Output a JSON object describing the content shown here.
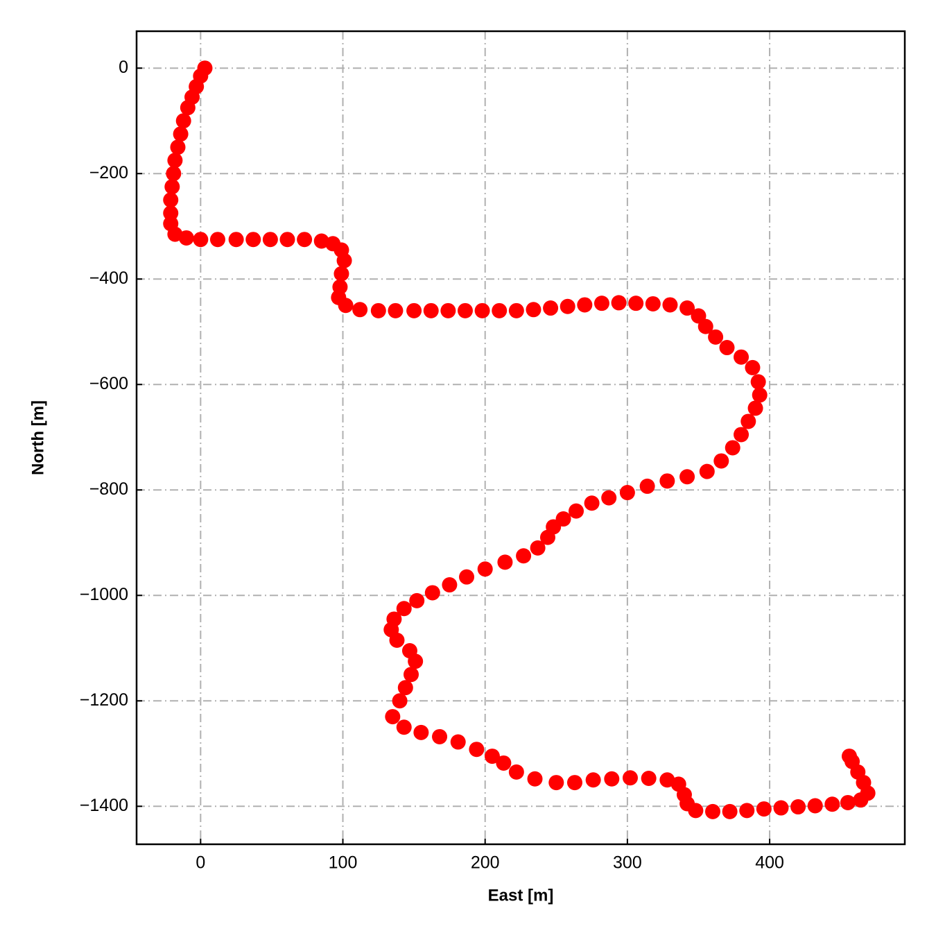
{
  "chart_data": {
    "type": "scatter",
    "xlabel": "East [m]",
    "ylabel": "North [m]",
    "color": "#ff0000",
    "grid": true,
    "xlim": [
      -45,
      495
    ],
    "ylim": [
      -1472,
      70
    ],
    "xticks": [
      0,
      100,
      200,
      300,
      400
    ],
    "yticks": [
      0,
      {
        "value": -200,
        "label": "−200"
      },
      {
        "value": -400,
        "label": "−400"
      },
      {
        "value": -600,
        "label": "−600"
      },
      {
        "value": -800,
        "label": "−800"
      },
      {
        "value": -1000,
        "label": "−1000"
      },
      {
        "value": -1200,
        "label": "−1200"
      },
      {
        "value": -1400,
        "label": "−1400"
      }
    ],
    "x": [
      3,
      0,
      -3,
      -6,
      -9,
      -12,
      -14,
      -16,
      -18,
      -19,
      -20,
      -21,
      -21,
      -21,
      -18,
      -10,
      0,
      12,
      25,
      37,
      49,
      61,
      73,
      85,
      93,
      99,
      101,
      99,
      98,
      97,
      102,
      112,
      125,
      137,
      150,
      162,
      174,
      186,
      198,
      210,
      222,
      234,
      246,
      258,
      270,
      282,
      294,
      306,
      318,
      330,
      342,
      350,
      355,
      362,
      370,
      380,
      388,
      392,
      393,
      390,
      385,
      380,
      374,
      366,
      356,
      342,
      328,
      314,
      300,
      287,
      275,
      264,
      255,
      248,
      244,
      237,
      227,
      214,
      200,
      187,
      175,
      163,
      152,
      143,
      136,
      134,
      138,
      147,
      151,
      148,
      144,
      140,
      135,
      143,
      155,
      168,
      181,
      194,
      205,
      213,
      222,
      235,
      250,
      263,
      276,
      289,
      302,
      315,
      328,
      336,
      340,
      342,
      348,
      360,
      372,
      384,
      396,
      408,
      420,
      432,
      444,
      455,
      464,
      469,
      466,
      462,
      458,
      456
    ],
    "values": [
      0,
      -15,
      -35,
      -55,
      -75,
      -100,
      -125,
      -150,
      -175,
      -200,
      -225,
      -250,
      -275,
      -295,
      -315,
      -322,
      -325,
      -325,
      -325,
      -325,
      -325,
      -325,
      -325,
      -328,
      -333,
      -345,
      -365,
      -390,
      -415,
      -435,
      -450,
      -458,
      -460,
      -460,
      -460,
      -460,
      -460,
      -460,
      -460,
      -460,
      -460,
      -458,
      -455,
      -452,
      -449,
      -446,
      -445,
      -446,
      -447,
      -449,
      -455,
      -470,
      -490,
      -510,
      -530,
      -548,
      -568,
      -595,
      -620,
      -645,
      -670,
      -695,
      -720,
      -745,
      -765,
      -775,
      -783,
      -793,
      -805,
      -815,
      -825,
      -840,
      -855,
      -870,
      -890,
      -910,
      -925,
      -937,
      -950,
      -965,
      -980,
      -995,
      -1010,
      -1025,
      -1045,
      -1065,
      -1085,
      -1105,
      -1125,
      -1150,
      -1175,
      -1200,
      -1230,
      -1250,
      -1260,
      -1268,
      -1278,
      -1292,
      -1305,
      -1318,
      -1335,
      -1348,
      -1355,
      -1355,
      -1350,
      -1348,
      -1346,
      -1347,
      -1350,
      -1358,
      -1378,
      -1395,
      -1408,
      -1410,
      -1410,
      -1408,
      -1405,
      -1403,
      -1401,
      -1399,
      -1396,
      -1393,
      -1388,
      -1375,
      -1355,
      -1335,
      -1315,
      -1305
    ]
  }
}
